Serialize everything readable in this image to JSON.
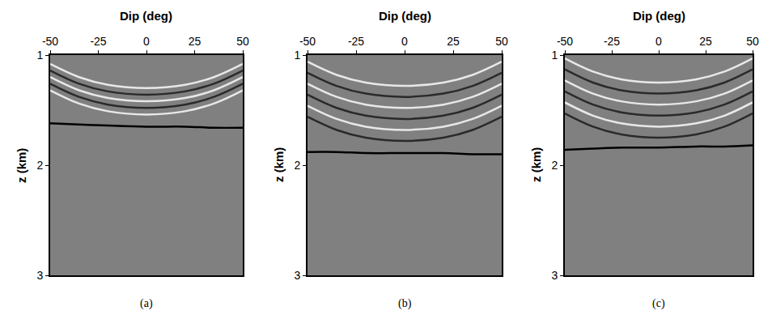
{
  "chart_data": [
    {
      "type": "line",
      "title": "(a)",
      "x_label": "Dip (deg)",
      "y_label": "z (km)",
      "xlim": [
        -50,
        50
      ],
      "xticks": [
        -50,
        -25,
        0,
        25,
        50
      ],
      "ylim": [
        3,
        1
      ],
      "yticks": [
        1,
        2,
        3
      ],
      "grid": false,
      "x": [
        -50,
        -35,
        -20,
        0,
        20,
        35,
        50
      ],
      "series": [
        {
          "color": "#e8e8e8",
          "values": [
            1.08,
            1.2,
            1.27,
            1.3,
            1.27,
            1.2,
            1.08
          ]
        },
        {
          "color": "#2a2a2a",
          "values": [
            1.14,
            1.26,
            1.33,
            1.36,
            1.33,
            1.26,
            1.14
          ]
        },
        {
          "color": "#e8e8e8",
          "values": [
            1.2,
            1.32,
            1.39,
            1.42,
            1.39,
            1.32,
            1.2
          ]
        },
        {
          "color": "#2a2a2a",
          "values": [
            1.26,
            1.38,
            1.45,
            1.48,
            1.45,
            1.38,
            1.26
          ]
        },
        {
          "color": "#e8e8e8",
          "values": [
            1.32,
            1.44,
            1.51,
            1.54,
            1.51,
            1.44,
            1.32
          ]
        },
        {
          "color": "#000000",
          "values": [
            1.62,
            1.63,
            1.64,
            1.65,
            1.65,
            1.66,
            1.66
          ]
        }
      ]
    },
    {
      "type": "line",
      "title": "(b)",
      "x_label": "Dip (deg)",
      "y_label": "z (km)",
      "xlim": [
        -50,
        50
      ],
      "xticks": [
        -50,
        -25,
        0,
        25,
        50
      ],
      "ylim": [
        3,
        1
      ],
      "yticks": [
        1,
        2,
        3
      ],
      "grid": false,
      "x": [
        -50,
        -35,
        -20,
        0,
        20,
        35,
        50
      ],
      "series": [
        {
          "color": "#e8e8e8",
          "values": [
            1.06,
            1.18,
            1.25,
            1.28,
            1.25,
            1.18,
            1.06
          ]
        },
        {
          "color": "#2a2a2a",
          "values": [
            1.16,
            1.28,
            1.35,
            1.38,
            1.35,
            1.28,
            1.16
          ]
        },
        {
          "color": "#e8e8e8",
          "values": [
            1.26,
            1.38,
            1.45,
            1.48,
            1.45,
            1.38,
            1.26
          ]
        },
        {
          "color": "#2a2a2a",
          "values": [
            1.36,
            1.48,
            1.55,
            1.58,
            1.55,
            1.48,
            1.36
          ]
        },
        {
          "color": "#e8e8e8",
          "values": [
            1.46,
            1.58,
            1.65,
            1.68,
            1.65,
            1.58,
            1.46
          ]
        },
        {
          "color": "#2a2a2a",
          "values": [
            1.56,
            1.68,
            1.75,
            1.78,
            1.75,
            1.68,
            1.56
          ]
        },
        {
          "color": "#000000",
          "values": [
            1.88,
            1.88,
            1.89,
            1.89,
            1.89,
            1.9,
            1.9
          ]
        }
      ]
    },
    {
      "type": "line",
      "title": "(c)",
      "x_label": "Dip (deg)",
      "y_label": "z (km)",
      "xlim": [
        -50,
        50
      ],
      "xticks": [
        -50,
        -25,
        0,
        25,
        50
      ],
      "ylim": [
        3,
        1
      ],
      "yticks": [
        1,
        2,
        3
      ],
      "grid": false,
      "x": [
        -50,
        -35,
        -20,
        0,
        20,
        35,
        50
      ],
      "series": [
        {
          "color": "#e8e8e8",
          "values": [
            1.03,
            1.15,
            1.22,
            1.25,
            1.22,
            1.15,
            1.03
          ]
        },
        {
          "color": "#2a2a2a",
          "values": [
            1.13,
            1.25,
            1.32,
            1.35,
            1.32,
            1.25,
            1.13
          ]
        },
        {
          "color": "#e8e8e8",
          "values": [
            1.23,
            1.35,
            1.42,
            1.45,
            1.42,
            1.35,
            1.23
          ]
        },
        {
          "color": "#2a2a2a",
          "values": [
            1.33,
            1.45,
            1.52,
            1.55,
            1.52,
            1.45,
            1.33
          ]
        },
        {
          "color": "#e8e8e8",
          "values": [
            1.43,
            1.55,
            1.62,
            1.65,
            1.62,
            1.55,
            1.43
          ]
        },
        {
          "color": "#2a2a2a",
          "values": [
            1.53,
            1.65,
            1.72,
            1.75,
            1.72,
            1.65,
            1.53
          ]
        },
        {
          "color": "#000000",
          "values": [
            1.86,
            1.85,
            1.84,
            1.84,
            1.83,
            1.83,
            1.82
          ]
        }
      ]
    }
  ]
}
